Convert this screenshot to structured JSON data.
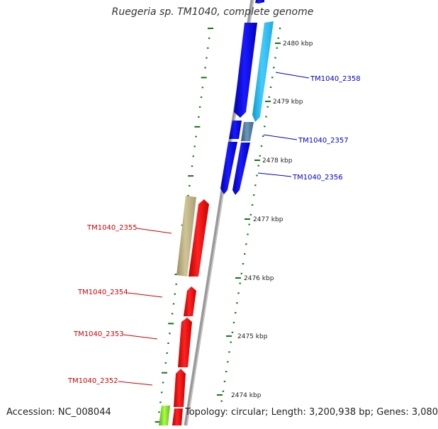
{
  "title": "Ruegeria sp. TM1040, complete genome",
  "footer": {
    "accession": "Accession: NC_008044",
    "summary": "Topology: circular; Length: 3,200,938 bp; Genes: 3,080"
  },
  "colors": {
    "plus_strand": "#0000ee",
    "plus_strand_light": "#22bbee",
    "plus_strand_steel": "#5588bb",
    "minus_strand": "#ee0000",
    "minus_strand_khaki": "#bdb382",
    "ruler_tick": "#117711",
    "backbone": "#888888"
  },
  "scale": {
    "ticks": [
      {
        "label": "2480 kbp"
      },
      {
        "label": "2479 kbp"
      },
      {
        "label": "2478 kbp"
      },
      {
        "label": "2477 kbp"
      },
      {
        "label": "2476 kbp"
      },
      {
        "label": "2475 kbp"
      },
      {
        "label": "2474 kbp"
      }
    ]
  },
  "genes": [
    {
      "name": "TM1040_2358",
      "strand": "+"
    },
    {
      "name": "TM1040_2357",
      "strand": "+"
    },
    {
      "name": "TM1040_2356",
      "strand": "+"
    },
    {
      "name": "TM1040_2355",
      "strand": "-"
    },
    {
      "name": "TM1040_2354",
      "strand": "-"
    },
    {
      "name": "TM1040_2353",
      "strand": "-"
    },
    {
      "name": "TM1040_2352",
      "strand": "-"
    }
  ]
}
